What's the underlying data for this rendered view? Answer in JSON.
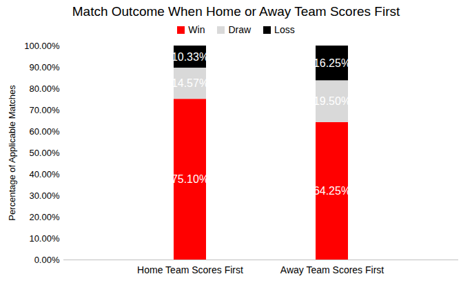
{
  "chart_data": {
    "type": "bar",
    "title": "Match Outcome When Home or Away Team Scores First",
    "categories": [
      "Home Team Scores First",
      "Away Team Scores First"
    ],
    "series": [
      {
        "name": "Win",
        "color": "#ff0000",
        "values": [
          75.1,
          64.25
        ],
        "value_labels": [
          "75.10%",
          "64.25%"
        ]
      },
      {
        "name": "Draw",
        "color": "#d9d9d9",
        "values": [
          14.57,
          19.5
        ],
        "value_labels": [
          "14.57%",
          "19.50%"
        ]
      },
      {
        "name": "Loss",
        "color": "#000000",
        "values": [
          10.33,
          16.25
        ],
        "value_labels": [
          "10.33%",
          "16.25%"
        ]
      }
    ],
    "y_label": "Percentage of Applicable Matches",
    "ylim": [
      0,
      100
    ],
    "yticks": [
      {
        "value": 0,
        "label": "0.00%"
      },
      {
        "value": 10,
        "label": "10.00%"
      },
      {
        "value": 20,
        "label": "20.00%"
      },
      {
        "value": 30,
        "label": "30.00%"
      },
      {
        "value": 40,
        "label": "40.00%"
      },
      {
        "value": 50,
        "label": "50.00%"
      },
      {
        "value": 60,
        "label": "60.00%"
      },
      {
        "value": 70,
        "label": "70.00%"
      },
      {
        "value": 80,
        "label": "80.00%"
      },
      {
        "value": 90,
        "label": "90.00%"
      },
      {
        "value": 100,
        "label": "100.00%"
      }
    ],
    "stacked": true,
    "data_labels": true,
    "legend": "top",
    "grid": false
  }
}
